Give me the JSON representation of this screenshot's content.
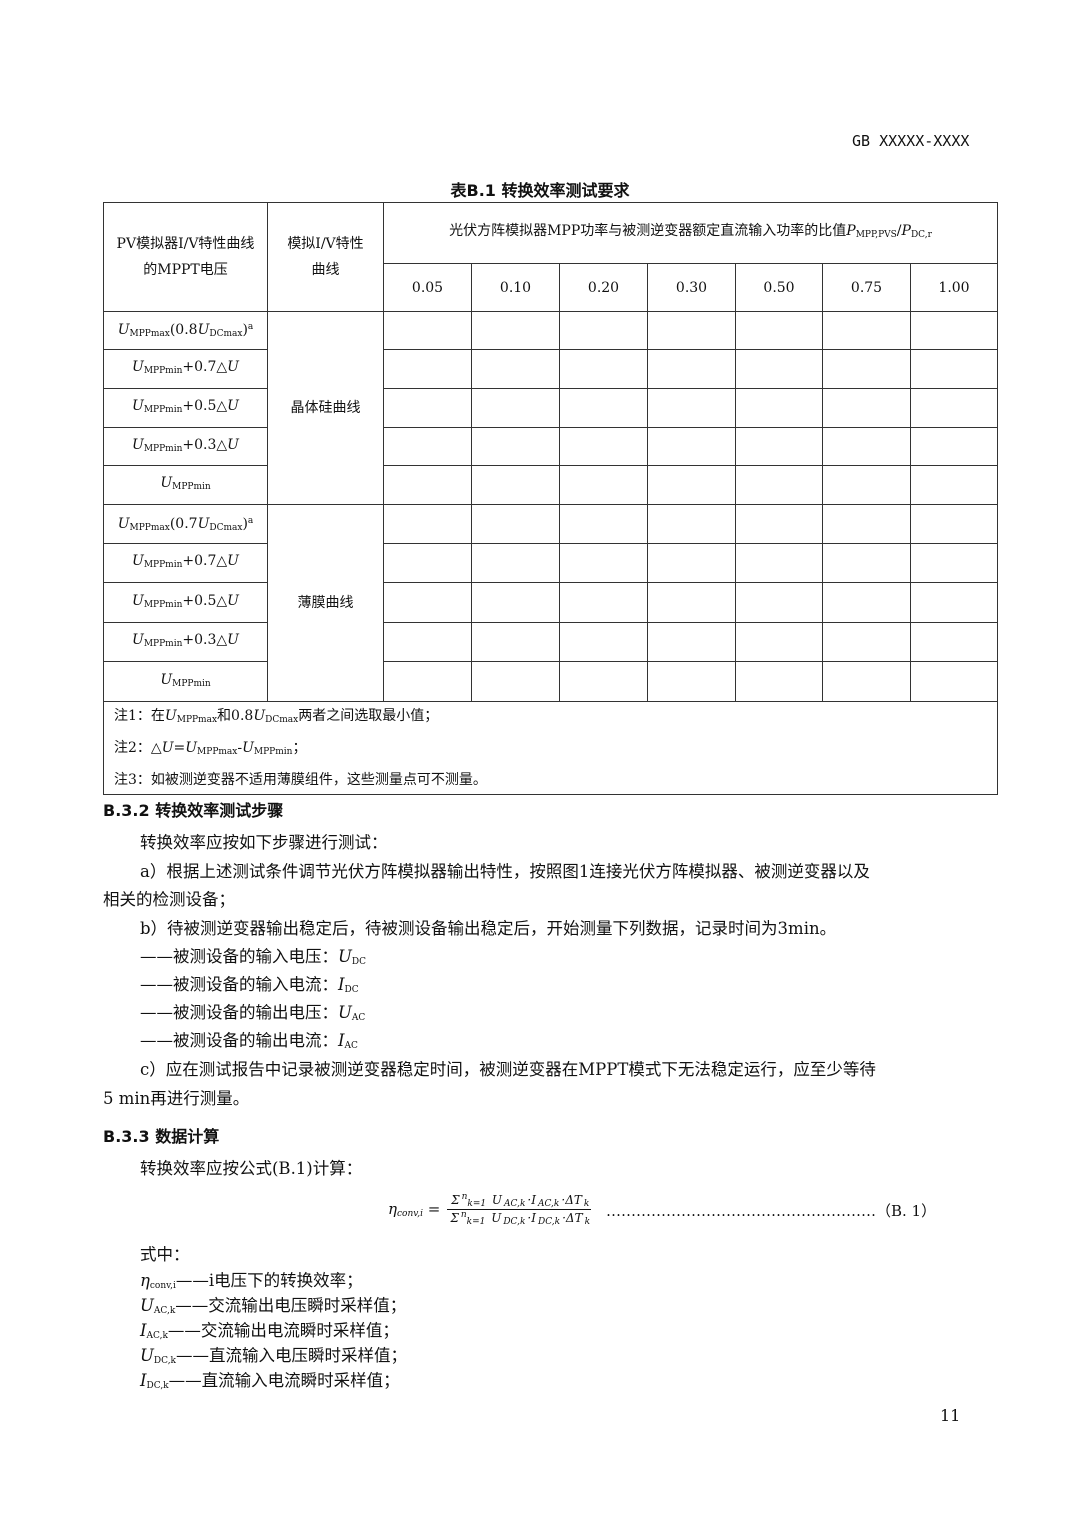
{
  "header": {
    "standard": "GB XXXXX-XXXX"
  },
  "table": {
    "caption": "表B.1 转换效率测试要求",
    "col1": "PV模拟器I/V特性曲线的MPPT电压",
    "col2": "模拟I/V特性曲线",
    "col3": [
      [
        "光伏方阵模拟器MPP功率与被测逆变器额定直流输入功率的比值",
        ""
      ],
      [
        "P",
        "i"
      ],
      [
        "MPP,PVS",
        "sub"
      ],
      [
        "/",
        ""
      ],
      [
        "P",
        "i"
      ],
      [
        "DC,r",
        "sub"
      ]
    ],
    "ratios": [
      "0.05",
      "0.10",
      "0.20",
      "0.30",
      "0.50",
      "0.75",
      "1.00"
    ],
    "groups": [
      {
        "curve": "晶体硅曲线",
        "rows": [
          [
            [
              "U",
              "i"
            ],
            [
              "MPPmax",
              "sub"
            ],
            [
              "(0.8",
              ""
            ],
            [
              "U",
              "i"
            ],
            [
              "DCmax",
              "sub"
            ],
            [
              ")",
              ""
            ],
            [
              "a",
              "sup"
            ]
          ],
          [
            [
              "U",
              "i"
            ],
            [
              "MPPmin",
              "sub"
            ],
            [
              "+0.7△",
              ""
            ],
            [
              "U",
              "i"
            ]
          ],
          [
            [
              "U",
              "i"
            ],
            [
              "MPPmin",
              "sub"
            ],
            [
              "+0.5△",
              ""
            ],
            [
              "U",
              "i"
            ]
          ],
          [
            [
              "U",
              "i"
            ],
            [
              "MPPmin",
              "sub"
            ],
            [
              "+0.3△",
              ""
            ],
            [
              "U",
              "i"
            ]
          ],
          [
            [
              "U",
              "i"
            ],
            [
              "MPPmin",
              "sub"
            ]
          ]
        ]
      },
      {
        "curve": "薄膜曲线",
        "rows": [
          [
            [
              "U",
              "i"
            ],
            [
              "MPPmax",
              "sub"
            ],
            [
              "(0.7",
              ""
            ],
            [
              "U",
              "i"
            ],
            [
              "DCmax",
              "sub"
            ],
            [
              ")",
              ""
            ],
            [
              "a",
              "sup"
            ]
          ],
          [
            [
              "U",
              "i"
            ],
            [
              "MPPmin",
              "sub"
            ],
            [
              "+0.7△",
              ""
            ],
            [
              "U",
              "i"
            ]
          ],
          [
            [
              "U",
              "i"
            ],
            [
              "MPPmin",
              "sub"
            ],
            [
              "+0.5△",
              ""
            ],
            [
              "U",
              "i"
            ]
          ],
          [
            [
              "U",
              "i"
            ],
            [
              "MPPmin",
              "sub"
            ],
            [
              "+0.3△",
              ""
            ],
            [
              "U",
              "i"
            ]
          ],
          [
            [
              "U",
              "i"
            ],
            [
              "MPPmin",
              "sub"
            ]
          ]
        ]
      }
    ],
    "notes": [
      [
        [
          "注1：在",
          ""
        ],
        [
          "U",
          "i"
        ],
        [
          "MPPmax",
          "sub"
        ],
        [
          "和0.8",
          ""
        ],
        [
          "U",
          "i"
        ],
        [
          "DCmax",
          "sub"
        ],
        [
          "两者之间选取最小值；",
          ""
        ]
      ],
      [
        [
          "注2：△",
          ""
        ],
        [
          "U",
          "i"
        ],
        [
          "=",
          ""
        ],
        [
          "U",
          "i"
        ],
        [
          "MPPmax",
          "sub"
        ],
        [
          "-",
          ""
        ],
        [
          "U",
          "i"
        ],
        [
          "MPPmin",
          "sub"
        ],
        [
          "；",
          ""
        ]
      ],
      [
        [
          "注3：如被测逆变器不适用薄膜组件，这些测量点可不测量。",
          ""
        ]
      ]
    ]
  },
  "section_b32": {
    "heading": "B.3.2 转换效率测试步骤",
    "intro": "转换效率应按如下步骤进行测试：",
    "step_a_1": "a）根据上述测试条件调节光伏方阵模拟器输出特性，按照图1连接光伏方阵模拟器、被测逆变器以及",
    "step_a_2": "相关的检测设备；",
    "step_b": "b）待被测逆变器输出稳定后，待被测设备输出稳定后，开始测量下列数据，记录时间为3min。",
    "items": [
      [
        [
          "——被测设备的输入电压：",
          ""
        ],
        [
          "U",
          "i"
        ],
        [
          "DC",
          "sub"
        ]
      ],
      [
        [
          "——被测设备的输入电流：",
          ""
        ],
        [
          "I",
          "i"
        ],
        [
          "DC",
          "sub"
        ]
      ],
      [
        [
          "——被测设备的输出电压：",
          ""
        ],
        [
          "U",
          "i"
        ],
        [
          "AC",
          "sub"
        ]
      ],
      [
        [
          "——被测设备的输出电流：",
          ""
        ],
        [
          "I",
          "i"
        ],
        [
          "AC",
          "sub"
        ]
      ]
    ],
    "step_c_1": "c）应在测试报告中记录被测逆变器稳定时间，被测逆变器在MPPT模式下无法稳定运行，应至少等待",
    "step_c_2": "5 min再进行测量。"
  },
  "section_b33": {
    "heading": "B.3.3 数据计算",
    "intro": "转换效率应按公式(B.1)计算：",
    "formula_lhs": [
      [
        "η",
        "i"
      ],
      [
        "conv,i",
        "sub"
      ],
      [
        " = ",
        ""
      ]
    ],
    "formula_num": [
      [
        "Σ",
        ""
      ],
      [
        "n",
        "sup"
      ],
      [
        "k=1",
        "sub"
      ],
      [
        " U",
        "i"
      ],
      [
        "AC,k",
        "sub"
      ],
      [
        "·I",
        "i"
      ],
      [
        "AC,k",
        "sub"
      ],
      [
        "·ΔT",
        "i"
      ],
      [
        "k",
        "sub"
      ]
    ],
    "formula_den": [
      [
        "Σ",
        ""
      ],
      [
        "n",
        "sup"
      ],
      [
        "k=1",
        "sub"
      ],
      [
        " U",
        "i"
      ],
      [
        "DC,k",
        "sub"
      ],
      [
        "·I",
        "i"
      ],
      [
        "DC,k",
        "sub"
      ],
      [
        "·ΔT",
        "i"
      ],
      [
        "k",
        "sub"
      ]
    ],
    "formula_ref": "………………………………………………（B. 1）",
    "where": "式中：",
    "defs": [
      [
        [
          "η",
          "i"
        ],
        [
          "conv,i",
          "sub"
        ],
        [
          "——i电压下的转换效率；",
          ""
        ]
      ],
      [
        [
          "U",
          "i"
        ],
        [
          "AC,k",
          "sub"
        ],
        [
          "——交流输出电压瞬时采样值；",
          ""
        ]
      ],
      [
        [
          "I",
          "i"
        ],
        [
          "AC,k",
          "sub"
        ],
        [
          "——交流输出电流瞬时采样值；",
          ""
        ]
      ],
      [
        [
          "U",
          "i"
        ],
        [
          "DC,k",
          "sub"
        ],
        [
          "——直流输入电压瞬时采样值；",
          ""
        ]
      ],
      [
        [
          "I",
          "i"
        ],
        [
          "DC,k",
          "sub"
        ],
        [
          "——直流输入电流瞬时采样值；",
          ""
        ]
      ]
    ]
  },
  "footer": {
    "page_number": "11"
  }
}
